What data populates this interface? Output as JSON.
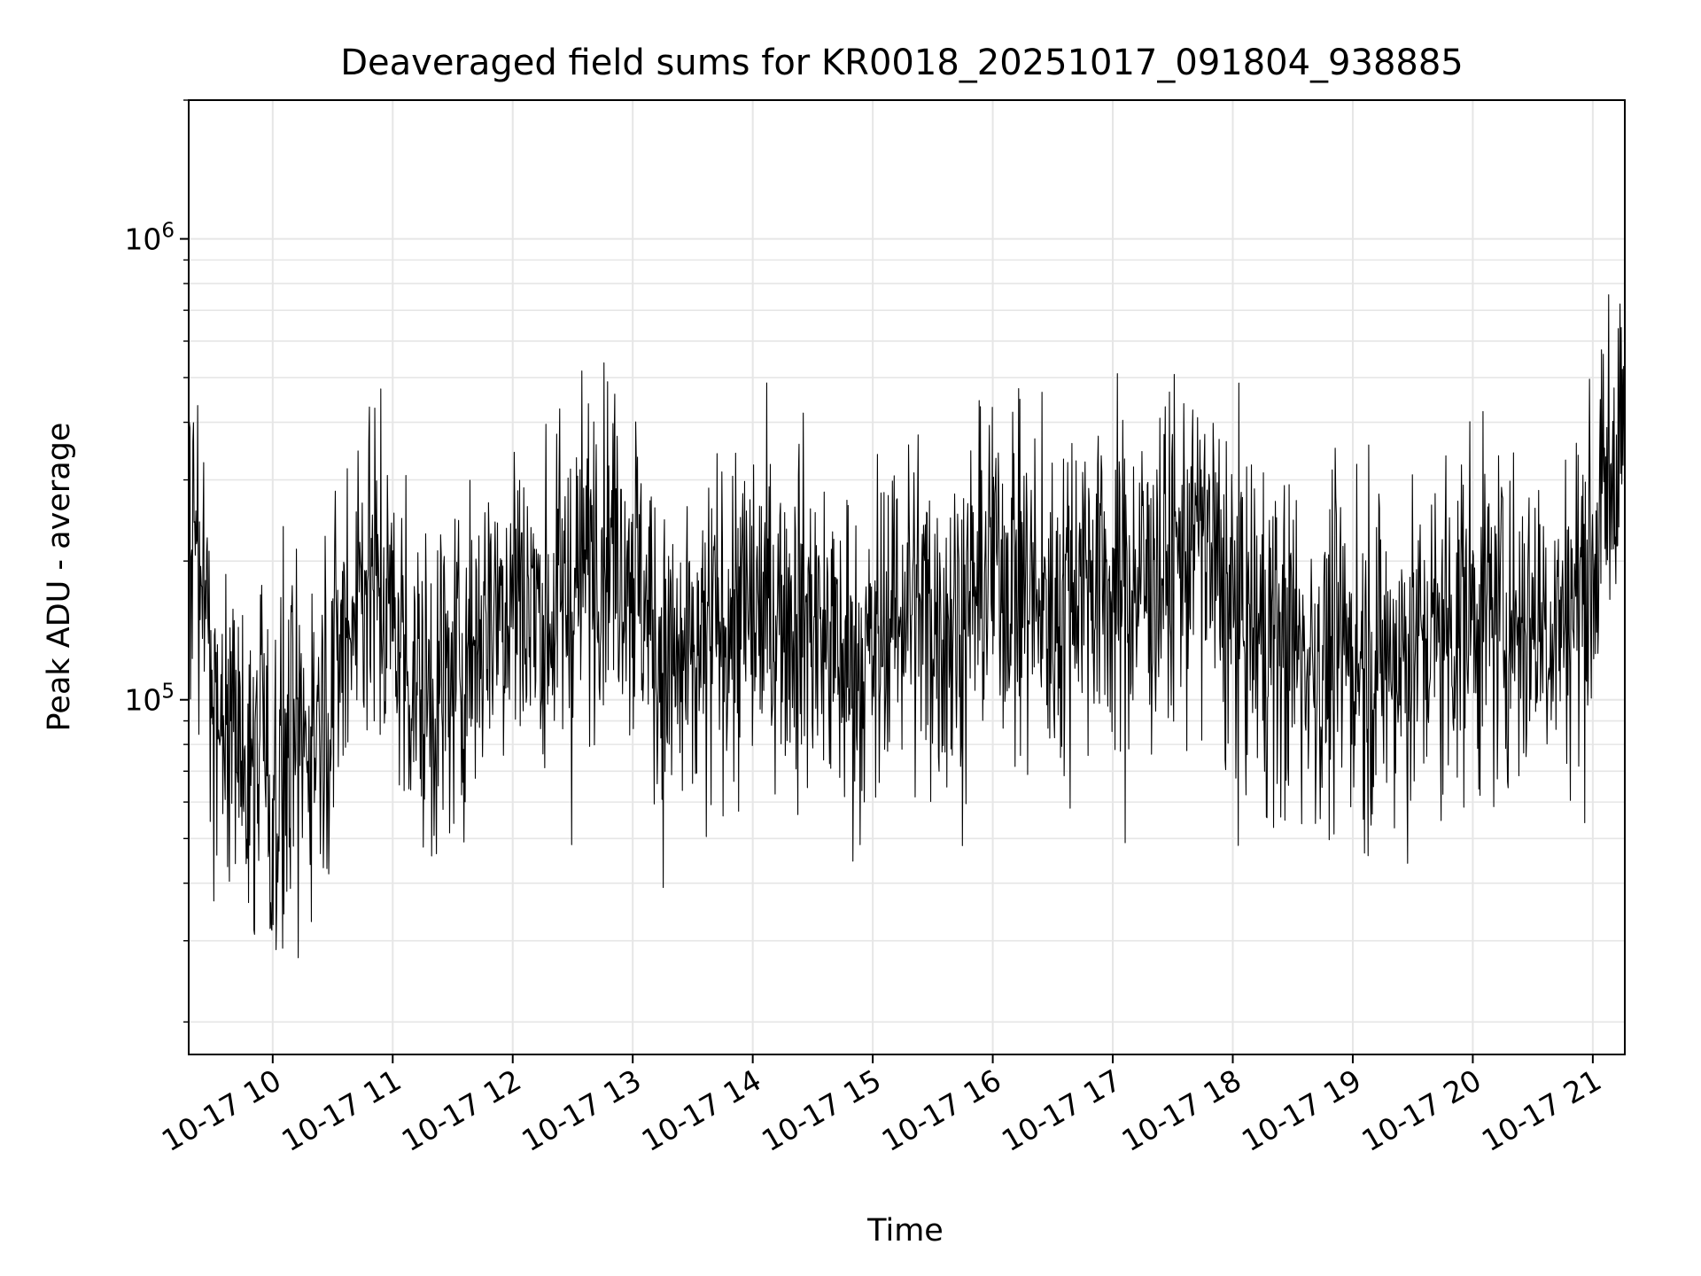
{
  "chart_data": {
    "type": "line",
    "title": "Deaveraged field sums for KR0018_20251017_091804_938885",
    "xlabel": "Time",
    "ylabel": "Peak ADU - average",
    "yscale": "log",
    "ylim": [
      17000,
      2000000
    ],
    "xlim": [
      "2025-10-17 09:18",
      "2025-10-17 21:16"
    ],
    "grid": true,
    "line_color": "#000000",
    "grid_color": "#e6e6e6",
    "y_ticks": [
      {
        "value": 100000,
        "base": "10",
        "exp": "5"
      },
      {
        "value": 1000000,
        "base": "10",
        "exp": "6"
      }
    ],
    "x_ticks": [
      {
        "value": "2025-10-17 10:00",
        "label": "10-17 10"
      },
      {
        "value": "2025-10-17 11:00",
        "label": "10-17 11"
      },
      {
        "value": "2025-10-17 12:00",
        "label": "10-17 12"
      },
      {
        "value": "2025-10-17 13:00",
        "label": "10-17 13"
      },
      {
        "value": "2025-10-17 14:00",
        "label": "10-17 14"
      },
      {
        "value": "2025-10-17 15:00",
        "label": "10-17 15"
      },
      {
        "value": "2025-10-17 16:00",
        "label": "10-17 16"
      },
      {
        "value": "2025-10-17 17:00",
        "label": "10-17 17"
      },
      {
        "value": "2025-10-17 18:00",
        "label": "10-17 18"
      },
      {
        "value": "2025-10-17 19:00",
        "label": "10-17 19"
      },
      {
        "value": "2025-10-17 20:00",
        "label": "10-17 20"
      },
      {
        "value": "2025-10-17 21:00",
        "label": "10-17 21"
      }
    ],
    "series": [
      {
        "x": [
          "2025-10-17 09:18",
          "2025-10-17 09:30",
          "2025-10-17 09:45",
          "2025-10-17 10:00",
          "2025-10-17 10:15",
          "2025-10-17 10:30",
          "2025-10-17 10:45",
          "2025-10-17 11:00",
          "2025-10-17 11:15",
          "2025-10-17 11:30",
          "2025-10-17 11:45",
          "2025-10-17 12:00",
          "2025-10-17 12:15",
          "2025-10-17 12:30",
          "2025-10-17 12:45",
          "2025-10-17 13:00",
          "2025-10-17 13:15",
          "2025-10-17 13:30",
          "2025-10-17 13:45",
          "2025-10-17 14:00",
          "2025-10-17 14:15",
          "2025-10-17 14:30",
          "2025-10-17 14:45",
          "2025-10-17 15:00",
          "2025-10-17 15:15",
          "2025-10-17 15:30",
          "2025-10-17 15:45",
          "2025-10-17 16:00",
          "2025-10-17 16:15",
          "2025-10-17 16:30",
          "2025-10-17 16:45",
          "2025-10-17 17:00",
          "2025-10-17 17:15",
          "2025-10-17 17:30",
          "2025-10-17 17:45",
          "2025-10-17 18:00",
          "2025-10-17 18:15",
          "2025-10-17 18:30",
          "2025-10-17 18:45",
          "2025-10-17 19:00",
          "2025-10-17 19:15",
          "2025-10-17 19:30",
          "2025-10-17 19:45",
          "2025-10-17 20:00",
          "2025-10-17 20:15",
          "2025-10-17 20:30",
          "2025-10-17 20:45",
          "2025-10-17 21:00",
          "2025-10-17 21:16"
        ],
        "y": [
          250000,
          110000,
          70000,
          65000,
          80000,
          110000,
          200000,
          150000,
          100000,
          110000,
          150000,
          180000,
          150000,
          170000,
          240000,
          200000,
          120000,
          110000,
          150000,
          150000,
          160000,
          150000,
          120000,
          120000,
          170000,
          150000,
          150000,
          200000,
          180000,
          150000,
          200000,
          170000,
          180000,
          200000,
          230000,
          150000,
          140000,
          130000,
          120000,
          130000,
          120000,
          130000,
          140000,
          160000,
          150000,
          150000,
          150000,
          200000,
          430000
        ]
      }
    ]
  }
}
